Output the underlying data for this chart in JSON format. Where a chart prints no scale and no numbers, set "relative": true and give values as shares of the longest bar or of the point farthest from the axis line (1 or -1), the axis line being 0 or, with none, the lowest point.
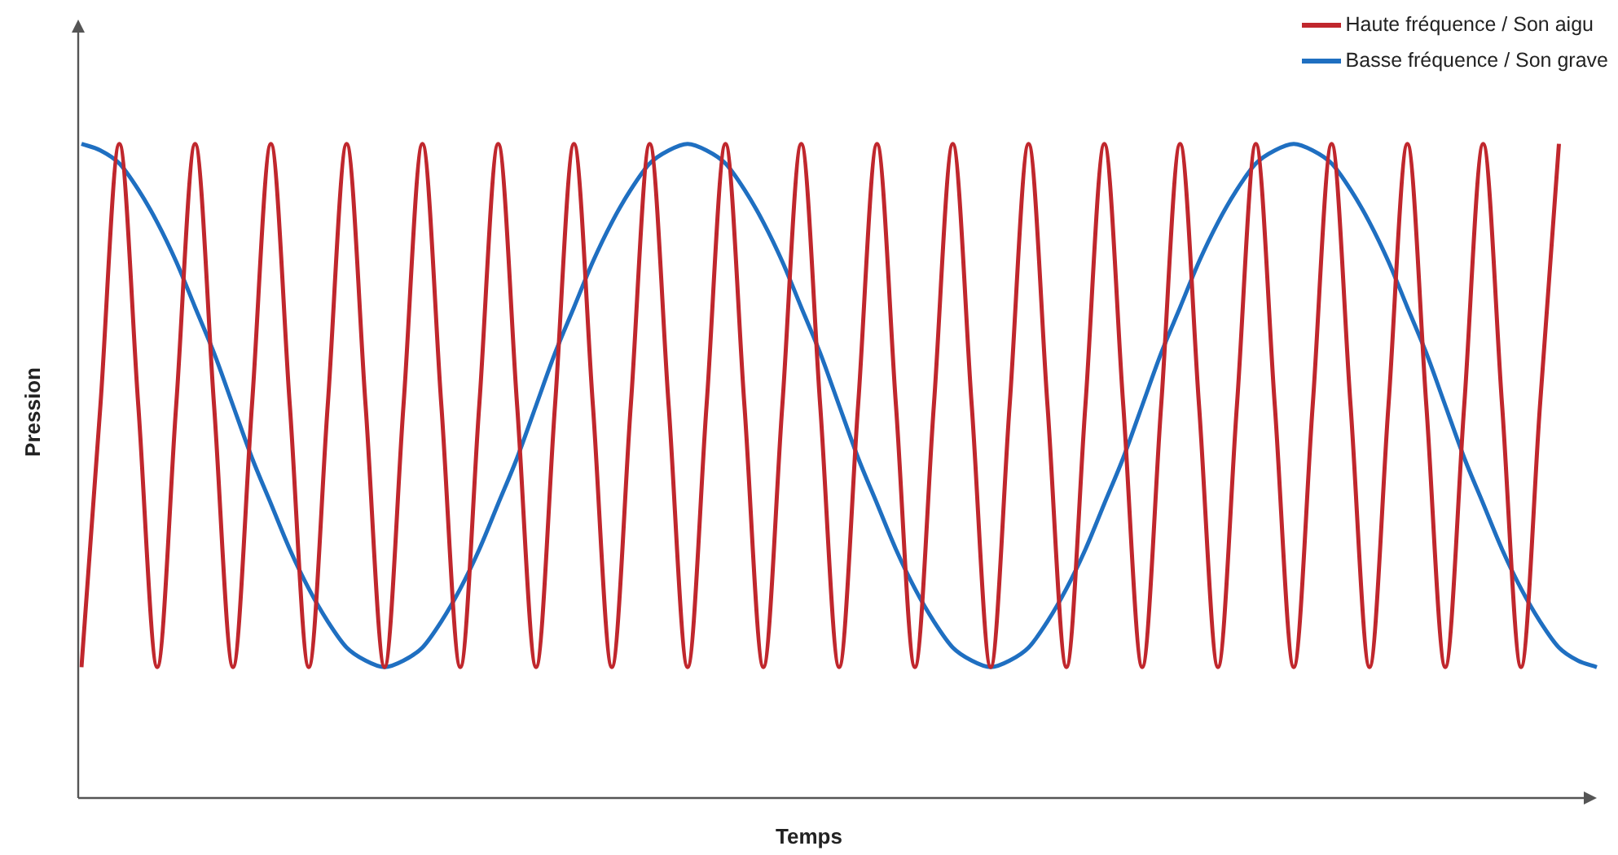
{
  "chart_data": {
    "type": "line",
    "relative": true,
    "xlabel": "Temps",
    "ylabel": "Pression",
    "legend": "top right",
    "marker": "none",
    "line_style": "solid",
    "grid": false,
    "tick_labels": false,
    "categories": [
      null,
      null,
      null,
      null,
      null,
      null,
      null,
      null,
      null,
      null,
      null,
      null,
      null,
      null,
      null,
      null,
      null,
      null,
      null,
      null,
      null,
      null,
      null,
      null,
      null,
      null,
      null,
      null,
      null,
      null,
      null,
      null,
      null,
      null,
      null,
      null,
      null,
      null,
      null,
      null,
      null,
      null,
      null,
      null,
      null,
      null,
      null,
      null,
      null,
      null,
      null,
      null,
      null,
      null,
      null,
      null,
      null,
      null,
      null,
      null,
      null,
      null,
      null,
      null,
      null,
      null,
      null,
      null,
      null,
      null,
      null,
      null,
      null,
      null,
      null,
      null,
      null,
      null,
      null,
      null,
      null
    ],
    "series": [
      {
        "name": "Haute fréquence / Son aigu",
        "color": "#c0272d",
        "values": [
          0.2,
          0.6,
          1,
          0.6,
          0.2,
          0.6,
          1,
          0.6,
          0.2,
          0.6,
          1,
          0.6,
          0.2,
          0.6,
          1,
          0.6,
          0.2,
          0.6,
          1,
          0.6,
          0.2,
          0.6,
          1,
          0.6,
          0.2,
          0.6,
          1,
          0.6,
          0.2,
          0.6,
          1,
          0.6,
          0.2,
          0.6,
          1,
          0.6,
          0.2,
          0.6,
          1,
          0.6,
          0.2,
          0.6,
          1,
          0.6,
          0.2,
          0.6,
          1,
          0.6,
          0.2,
          0.6,
          1,
          0.6,
          0.2,
          0.6,
          1,
          0.6,
          0.2,
          0.6,
          1,
          0.6,
          0.2,
          0.6,
          1,
          0.6,
          0.2,
          0.6,
          1,
          0.6,
          0.2,
          0.6,
          1,
          0.6,
          0.2,
          0.6,
          1,
          0.6,
          0.2,
          0.6,
          1,
          null,
          null
        ]
      },
      {
        "name": "Basse fréquence / Son grave",
        "color": "#1f6fc1",
        "values": [
          1,
          0.99,
          0.97,
          0.93,
          0.88,
          0.82,
          0.75,
          0.68,
          0.6,
          0.52,
          0.45,
          0.38,
          0.32,
          0.27,
          0.23,
          0.21,
          0.2,
          0.21,
          0.23,
          0.27,
          0.32,
          0.38,
          0.45,
          0.52,
          0.6,
          0.68,
          0.75,
          0.82,
          0.88,
          0.93,
          0.97,
          0.99,
          1,
          0.99,
          0.97,
          0.93,
          0.88,
          0.82,
          0.75,
          0.68,
          0.6,
          0.52,
          0.45,
          0.38,
          0.32,
          0.27,
          0.23,
          0.21,
          0.2,
          0.21,
          0.23,
          0.27,
          0.32,
          0.38,
          0.45,
          0.52,
          0.6,
          0.68,
          0.75,
          0.82,
          0.88,
          0.93,
          0.97,
          0.99,
          1,
          0.99,
          0.97,
          0.93,
          0.88,
          0.82,
          0.75,
          0.68,
          0.6,
          0.52,
          0.45,
          0.38,
          0.32,
          0.27,
          0.23,
          0.21,
          0.2
        ]
      }
    ]
  }
}
